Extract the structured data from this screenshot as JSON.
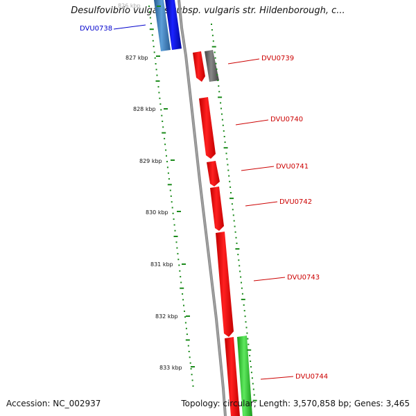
{
  "title": "Desulfovibrio vulgaris subsp. vulgaris str. Hildenborough, c...",
  "accession_label": "Accession: NC_002937",
  "summary_label": "Topology: circular; Length: 3,570,858 bp; Genes: 3,465",
  "scale_labels": [
    "826 kbp",
    "827 kbp",
    "828 kbp",
    "829 kbp",
    "830 kbp",
    "831 kbp",
    "832 kbp",
    "833 kbp"
  ],
  "genes": [
    {
      "name": "DVU0738",
      "strand": "reverse",
      "color": "#0a10e0"
    },
    {
      "name": "DVU0739",
      "strand": "forward",
      "color": "#ee0a0a"
    },
    {
      "name": "DVU0740",
      "strand": "forward",
      "color": "#ee0a0a"
    },
    {
      "name": "DVU0741",
      "strand": "forward",
      "color": "#ee0a0a"
    },
    {
      "name": "DVU0742",
      "strand": "forward",
      "color": "#ee0a0a"
    },
    {
      "name": "DVU0743",
      "strand": "forward",
      "color": "#ee0a0a"
    },
    {
      "name": "DVU0744",
      "strand": "forward",
      "color": "#2ecc2e"
    }
  ],
  "colors": {
    "cds_reverse": "#0a10e0",
    "cds_forward": "#ee0a0a",
    "label_reverse": "#0000cc",
    "label_forward": "#cc0000",
    "gc_dots": "#1a8a1a",
    "backbone": "#888888",
    "gray_feature": "#666666",
    "green_feature": "#2ecc2e",
    "teal_feature": "#3a7fc0"
  }
}
